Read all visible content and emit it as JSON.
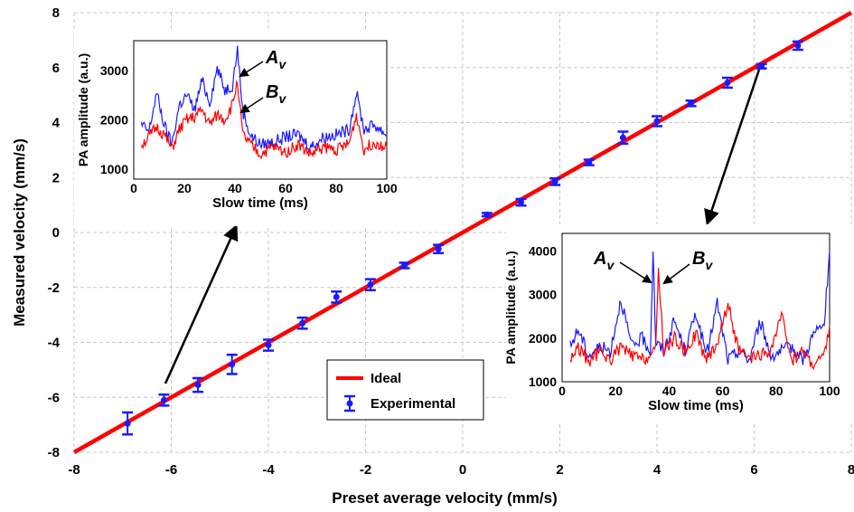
{
  "chart_data": [
    {
      "type": "scatter",
      "xlabel": "Preset average velocity (mm/s)",
      "ylabel": "Measured  velocity (mm/s)",
      "xlim": [
        -8,
        8
      ],
      "ylim": [
        -8,
        8
      ],
      "xticks": [
        "-8",
        "-6",
        "-4",
        "-2",
        "0",
        "2",
        "4",
        "6",
        "8"
      ],
      "yticks": [
        "-8",
        "-6",
        "-4",
        "-2",
        "0",
        "2",
        "4",
        "6",
        "8"
      ],
      "grid": true,
      "legend_position": "bottom-center",
      "series": [
        {
          "name": "Ideal",
          "type": "line",
          "color": "#ff0000",
          "x": [
            -8,
            8
          ],
          "y": [
            -8,
            8
          ]
        },
        {
          "name": "Experimental",
          "type": "errorbar",
          "color": "#1a1aff",
          "x": [
            -6.9,
            -6.15,
            -5.45,
            -4.75,
            -4.0,
            -3.3,
            -2.6,
            -1.9,
            -1.2,
            -0.5,
            0.5,
            1.2,
            1.9,
            2.6,
            3.3,
            4.0,
            4.7,
            5.45,
            6.15,
            6.9
          ],
          "y": [
            -6.95,
            -6.1,
            -5.55,
            -4.8,
            -4.1,
            -3.3,
            -2.35,
            -1.9,
            -1.2,
            -0.6,
            0.65,
            1.1,
            1.85,
            2.55,
            3.45,
            4.05,
            4.7,
            5.45,
            6.05,
            6.8
          ],
          "error": [
            0.4,
            0.2,
            0.25,
            0.35,
            0.2,
            0.2,
            0.2,
            0.2,
            0.1,
            0.15,
            0.06,
            0.12,
            0.12,
            0.1,
            0.22,
            0.18,
            0.1,
            0.18,
            0.08,
            0.15
          ]
        }
      ]
    },
    {
      "type": "line",
      "xlabel": "Slow time (ms)",
      "ylabel": "PA amplitude (a.u.)",
      "xlim": [
        0,
        100
      ],
      "ylim": [
        800,
        3600
      ],
      "xticks": [
        "0",
        "20",
        "40",
        "60",
        "80",
        "100"
      ],
      "yticks": [
        "1000",
        "2000",
        "3000"
      ],
      "annotations": [
        {
          "label": "A",
          "subscript": "v",
          "x": 41,
          "y": 3300
        },
        {
          "label": "B",
          "subscript": "v",
          "x": 41,
          "y": 2600
        }
      ],
      "series": [
        {
          "color": "#1a1aff",
          "x": [
            3,
            6,
            9,
            12,
            15,
            18,
            21,
            24,
            27,
            30,
            33,
            36,
            39,
            41,
            43,
            46,
            50,
            55,
            60,
            65,
            70,
            75,
            80,
            85,
            88,
            91,
            95,
            100
          ],
          "y": [
            1900,
            1750,
            2550,
            1900,
            1500,
            2300,
            2500,
            2200,
            2800,
            2350,
            3050,
            2600,
            2700,
            3450,
            2200,
            1700,
            1500,
            1550,
            1650,
            1700,
            1450,
            1650,
            1700,
            1800,
            2550,
            1800,
            1900,
            1700
          ]
        },
        {
          "color": "#ff0000",
          "x": [
            3,
            6,
            9,
            12,
            15,
            18,
            21,
            24,
            27,
            30,
            33,
            36,
            39,
            41,
            43,
            46,
            50,
            55,
            60,
            65,
            70,
            75,
            80,
            85,
            88,
            91,
            95,
            100
          ],
          "y": [
            1500,
            1650,
            1850,
            1700,
            1400,
            1800,
            2000,
            2050,
            2200,
            1900,
            2100,
            2000,
            2300,
            2800,
            1700,
            1500,
            1300,
            1450,
            1350,
            1500,
            1300,
            1450,
            1400,
            1500,
            2100,
            1400,
            1550,
            1450
          ]
        }
      ]
    },
    {
      "type": "line",
      "xlabel": "Slow time (ms)",
      "ylabel": "PA amplitude (a.u.)",
      "xlim": [
        0,
        100
      ],
      "ylim": [
        1000,
        4400
      ],
      "xticks": [
        "0",
        "20",
        "40",
        "60",
        "80",
        "100"
      ],
      "yticks": [
        "1000",
        "2000",
        "3000",
        "4000"
      ],
      "annotations": [
        {
          "label": "A",
          "subscript": "v",
          "x": 34,
          "y": 3300
        },
        {
          "label": "B",
          "subscript": "v",
          "x": 36,
          "y": 3300
        }
      ],
      "series": [
        {
          "color": "#1a1aff",
          "x": [
            3,
            6,
            10,
            14,
            18,
            22,
            26,
            30,
            33,
            34,
            35,
            38,
            42,
            46,
            50,
            54,
            58,
            62,
            66,
            70,
            74,
            78,
            82,
            86,
            90,
            94,
            98,
            100
          ],
          "y": [
            1800,
            2200,
            1600,
            1800,
            1700,
            2900,
            1800,
            2000,
            1700,
            4050,
            1900,
            1700,
            2400,
            1700,
            2600,
            1600,
            2800,
            1500,
            1700,
            1500,
            2400,
            1600,
            1700,
            1800,
            1500,
            2100,
            2300,
            4000
          ]
        },
        {
          "color": "#ff0000",
          "x": [
            3,
            6,
            10,
            14,
            18,
            22,
            26,
            30,
            33,
            35,
            36,
            38,
            42,
            46,
            50,
            54,
            58,
            62,
            66,
            70,
            74,
            78,
            82,
            86,
            90,
            94,
            98,
            100
          ],
          "y": [
            1500,
            1800,
            1450,
            1700,
            1500,
            1800,
            1600,
            1500,
            1600,
            1700,
            3600,
            1700,
            2000,
            1700,
            2100,
            1500,
            1900,
            2800,
            1700,
            1500,
            1600,
            1700,
            2500,
            1500,
            1700,
            1400,
            1600,
            2300
          ]
        }
      ]
    }
  ]
}
